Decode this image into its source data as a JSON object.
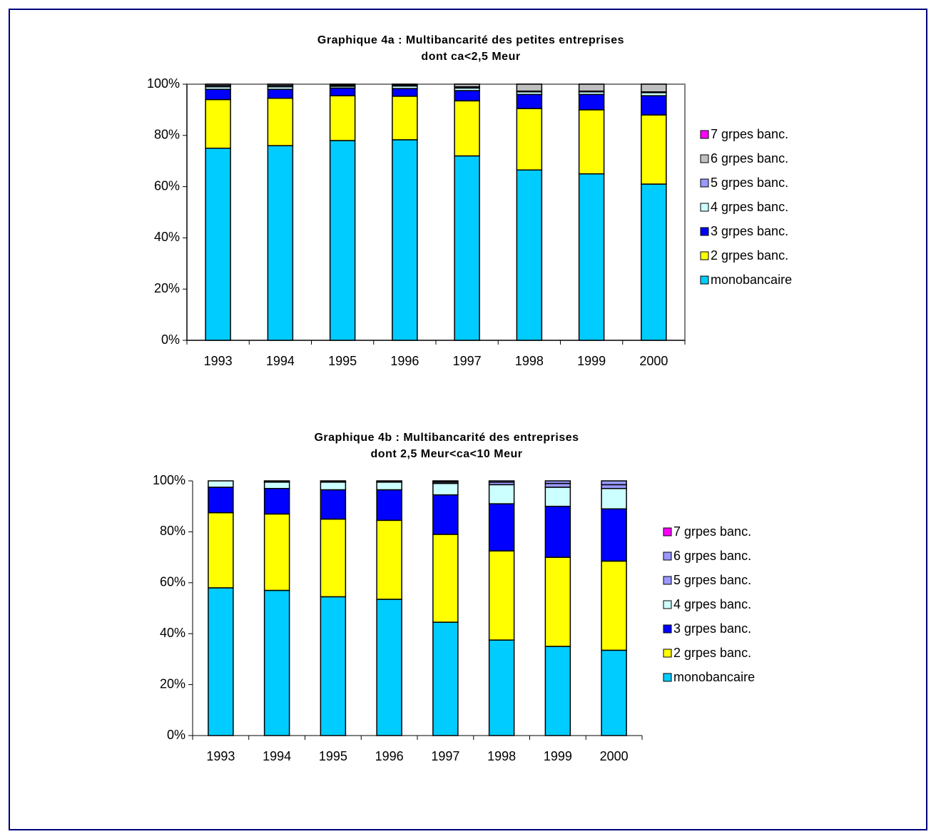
{
  "chart_data": [
    {
      "type": "stacked_bar",
      "title": [
        "Graphique 4a : Multibancarité des petites entreprises",
        "dont ca<2,5 Meur"
      ],
      "categories": [
        "1993",
        "1994",
        "1995",
        "1996",
        "1997",
        "1998",
        "1999",
        "2000"
      ],
      "ylim": [
        0,
        100
      ],
      "yticks": [
        {
          "value": 0,
          "label": "0%"
        },
        {
          "value": 20,
          "label": "20%"
        },
        {
          "value": 40,
          "label": "40%"
        },
        {
          "value": 60,
          "label": "60%"
        },
        {
          "value": 80,
          "label": "80%"
        },
        {
          "value": 100,
          "label": "100%"
        }
      ],
      "legend": "right",
      "series": [
        {
          "name": "monobancaire",
          "color": "#00ccff",
          "values": [
            75,
            76,
            78,
            78.3,
            72,
            66.5,
            65,
            61
          ]
        },
        {
          "name": "2 grpes banc.",
          "color": "#ffff00",
          "values": [
            19,
            18.5,
            17.5,
            17,
            21.5,
            24,
            25,
            27
          ]
        },
        {
          "name": "3 grpes banc.",
          "color": "#0000ff",
          "values": [
            4,
            3.5,
            3,
            3,
            4,
            5.5,
            6,
            7.5
          ]
        },
        {
          "name": "4 grpes banc.",
          "color": "#ccffff",
          "values": [
            1,
            1,
            0.7,
            1,
            1,
            1,
            1,
            1.2
          ]
        },
        {
          "name": "5 grpes banc.",
          "color": "#9999ff",
          "values": [
            0.5,
            0.5,
            0.4,
            0.3,
            0.5,
            0.3,
            0.3,
            0.3
          ]
        },
        {
          "name": "6 grpes banc.",
          "color": "#c0c0c0",
          "values": [
            0.5,
            0.5,
            0.4,
            0.4,
            1,
            2.7,
            2.7,
            3
          ]
        },
        {
          "name": "7 grpes banc.",
          "color": "#ff00ff",
          "values": [
            0,
            0,
            0,
            0,
            0,
            0,
            0,
            0
          ]
        }
      ]
    },
    {
      "type": "stacked_bar",
      "title": [
        "Graphique 4b : Multibancarité des entreprises",
        "dont 2,5 Meur<ca<10 Meur"
      ],
      "categories": [
        "1993",
        "1994",
        "1995",
        "1996",
        "1997",
        "1998",
        "1999",
        "2000"
      ],
      "ylim": [
        0,
        100
      ],
      "yticks": [
        {
          "value": 0,
          "label": "0%"
        },
        {
          "value": 20,
          "label": "20%"
        },
        {
          "value": 40,
          "label": "40%"
        },
        {
          "value": 60,
          "label": "60%"
        },
        {
          "value": 80,
          "label": "80%"
        },
        {
          "value": 100,
          "label": "100%"
        }
      ],
      "legend": "right",
      "series": [
        {
          "name": "monobancaire",
          "color": "#00ccff",
          "values": [
            58,
            57,
            54.5,
            53.5,
            44.5,
            37.5,
            35,
            33.5
          ]
        },
        {
          "name": "2 grpes banc.",
          "color": "#ffff00",
          "values": [
            29.5,
            30,
            30.5,
            31,
            34.5,
            35,
            35,
            35
          ]
        },
        {
          "name": "3 grpes banc.",
          "color": "#0000ff",
          "values": [
            10,
            10,
            11.5,
            12,
            15.5,
            18.5,
            20,
            20.5
          ]
        },
        {
          "name": "4 grpes banc.",
          "color": "#ccffff",
          "values": [
            2.5,
            2.5,
            3,
            3,
            4.5,
            7.5,
            7.5,
            8
          ]
        },
        {
          "name": "5 grpes banc.",
          "color": "#9999ff",
          "values": [
            0,
            0.3,
            0.3,
            0.3,
            0.5,
            1,
            1.5,
            1.5
          ]
        },
        {
          "name": "6 grpes banc.",
          "color": "#9999ff",
          "values": [
            0,
            0.2,
            0.2,
            0.2,
            0.3,
            0.5,
            1,
            1.5
          ]
        },
        {
          "name": "7 grpes banc.",
          "color": "#ff00ff",
          "values": [
            0,
            0,
            0,
            0,
            0.2,
            0,
            0,
            0
          ]
        }
      ]
    }
  ]
}
